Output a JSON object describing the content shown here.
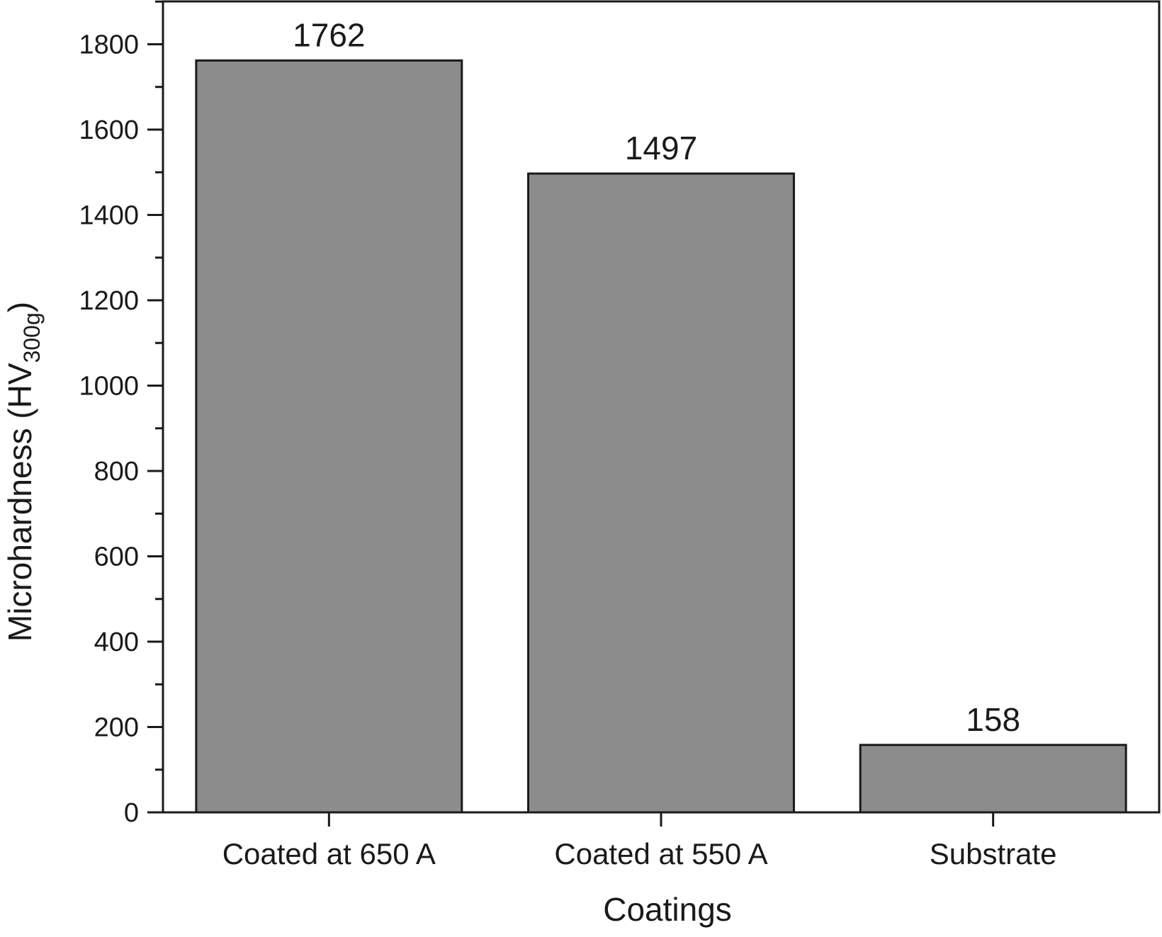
{
  "chart_data": {
    "type": "bar",
    "categories": [
      "Coated at 650 A",
      "Coated at 550 A",
      "Substrate"
    ],
    "values": [
      1762,
      1497,
      158
    ],
    "value_labels": [
      "1762",
      "1497",
      "158"
    ],
    "xlabel": "Coatings",
    "ylabel": {
      "main": "Microhardness (HV",
      "subscript": "300g",
      "close": ")"
    },
    "ylim": [
      0,
      1900
    ],
    "yticks": [
      0,
      200,
      400,
      600,
      800,
      1000,
      1200,
      1400,
      1600,
      1800
    ],
    "ytick_labels": [
      "0",
      "200",
      "400",
      "600",
      "800",
      "1000",
      "1200",
      "1400",
      "1600",
      "1800"
    ],
    "minor_tick_step": 100,
    "bar_color": "#8c8c8c",
    "edge_color": "#1a1a1a",
    "grid": false,
    "legend": "none",
    "frame": "box"
  }
}
